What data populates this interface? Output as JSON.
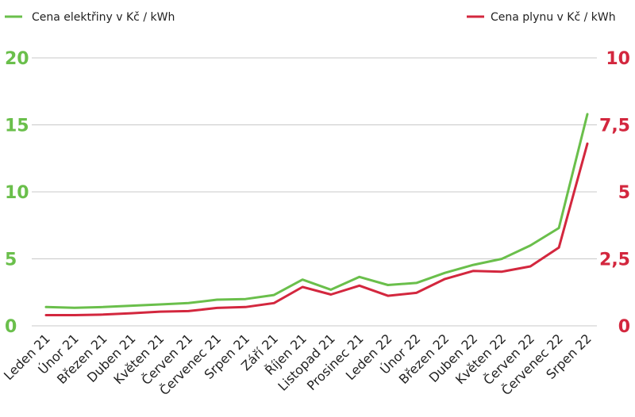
{
  "colors": {
    "electricity": "#6abf4b",
    "gas": "#d3273e",
    "grid": "#c8c8c8"
  },
  "chart_data": {
    "type": "line",
    "categories": [
      "Leden 21",
      "Únor 21",
      "Březen 21",
      "Duben 21",
      "Květen 21",
      "Červen 21",
      "Červenec 21",
      "Srpen 21",
      "Září 21",
      "Říjen 21",
      "Listopad 21",
      "Prosinec 21",
      "Leden 22",
      "Únor 22",
      "Březen 22",
      "Duben 22",
      "Květen 22",
      "Červen 22",
      "Červenec 22",
      "Srpen 22"
    ],
    "series": [
      {
        "name": "Cena elektřiny v Kč / kWh",
        "axis": "left",
        "values": [
          1.4,
          1.35,
          1.4,
          1.5,
          1.6,
          1.7,
          1.95,
          2.0,
          2.3,
          3.45,
          2.7,
          3.65,
          3.05,
          3.2,
          3.95,
          4.55,
          5.0,
          6.0,
          7.3,
          15.8
        ]
      },
      {
        "name": "Cena plynu v Kč / kWh",
        "axis": "right",
        "values": [
          0.4,
          0.4,
          0.42,
          0.47,
          0.53,
          0.55,
          0.67,
          0.7,
          0.85,
          1.45,
          1.17,
          1.5,
          1.12,
          1.23,
          1.75,
          2.05,
          2.02,
          2.22,
          2.92,
          6.8
        ]
      }
    ],
    "y_left": {
      "ticks": [
        "0",
        "5",
        "10",
        "15",
        "20"
      ],
      "ylim": [
        0,
        20
      ]
    },
    "y_right": {
      "ticks": [
        "0",
        "2,5",
        "5",
        "7,5",
        "10"
      ],
      "ylim": [
        0,
        10
      ]
    },
    "grid": true,
    "legend": "top"
  }
}
